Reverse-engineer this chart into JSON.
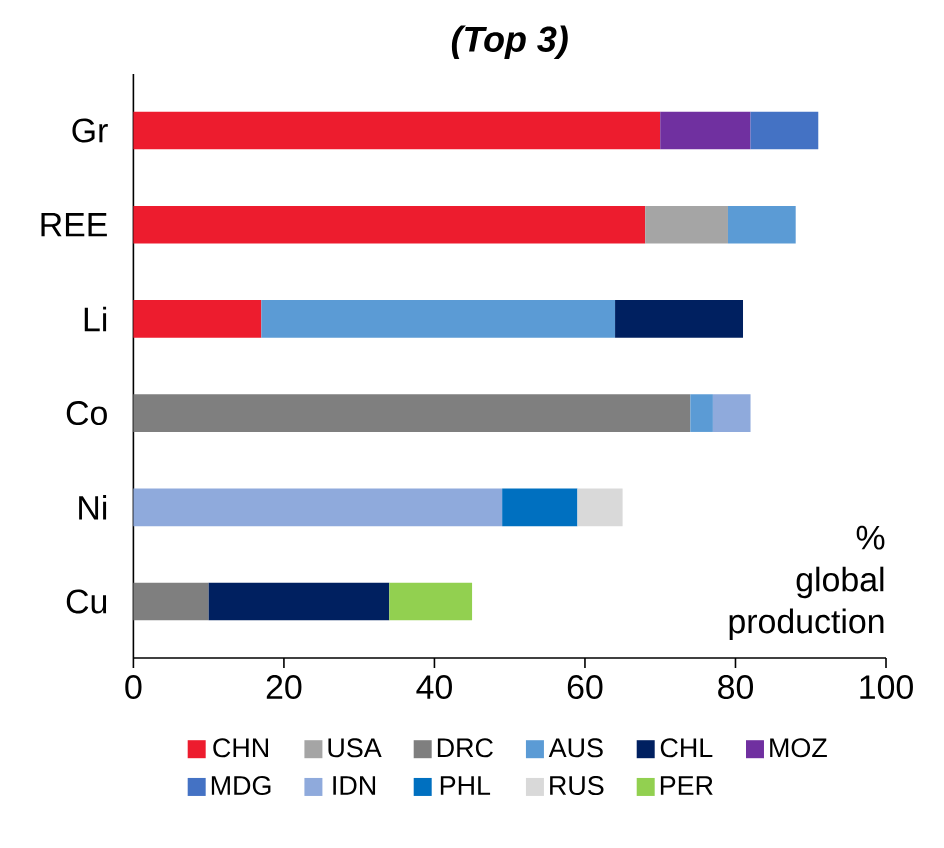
{
  "chart_data": {
    "type": "bar",
    "orientation": "horizontal",
    "stacked": true,
    "title": "(Top 3)",
    "categories": [
      "Gr",
      "REE",
      "Li",
      "Co",
      "Ni",
      "Cu"
    ],
    "series": [
      {
        "name": "CHN",
        "color": "#ed1c2e",
        "values": [
          70,
          68,
          17,
          null,
          null,
          null
        ]
      },
      {
        "name": "USA",
        "color": "#a5a5a5",
        "values": [
          null,
          11,
          null,
          null,
          null,
          null
        ]
      },
      {
        "name": "DRC",
        "color": "#7f7f7f",
        "values": [
          null,
          null,
          null,
          74,
          null,
          10
        ]
      },
      {
        "name": "AUS",
        "color": "#5b9bd5",
        "values": [
          null,
          9,
          47,
          3,
          null,
          null
        ]
      },
      {
        "name": "CHL",
        "color": "#002060",
        "values": [
          null,
          null,
          17,
          null,
          null,
          24
        ]
      },
      {
        "name": "MOZ",
        "color": "#7030a0",
        "values": [
          12,
          null,
          null,
          null,
          null,
          null
        ]
      },
      {
        "name": "MDG",
        "color": "#4472c4",
        "values": [
          9,
          null,
          null,
          null,
          null,
          null
        ]
      },
      {
        "name": "IDN",
        "color": "#8faadc",
        "values": [
          null,
          null,
          null,
          5,
          49,
          null
        ]
      },
      {
        "name": "PHL",
        "color": "#0070c0",
        "values": [
          null,
          null,
          null,
          null,
          10,
          null
        ]
      },
      {
        "name": "RUS",
        "color": "#d9d9d9",
        "values": [
          null,
          null,
          null,
          null,
          6,
          null
        ]
      },
      {
        "name": "PER",
        "color": "#92d050",
        "values": [
          null,
          null,
          null,
          null,
          null,
          11
        ]
      }
    ],
    "xlim": [
      0,
      100
    ],
    "xticks": [
      0,
      20,
      40,
      60,
      80,
      100
    ],
    "annotations": [
      "% global production"
    ],
    "legend": "bottom",
    "grid": false
  }
}
